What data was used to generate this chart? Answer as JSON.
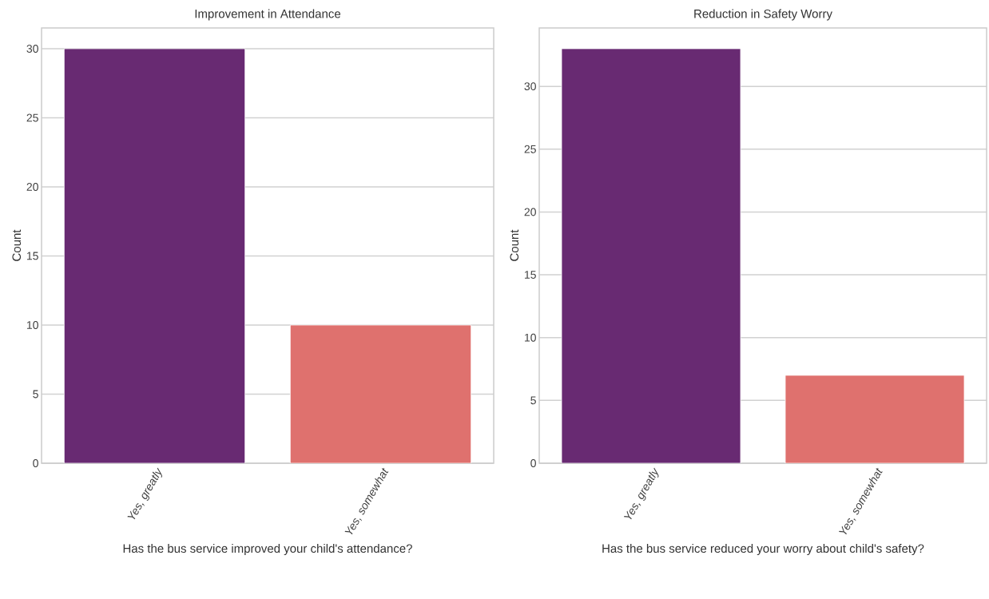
{
  "chart_data": [
    {
      "type": "bar",
      "title": "Improvement in Attendance",
      "xlabel": "Has the bus service improved your child's attendance?",
      "ylabel": "Count",
      "categories": [
        "Yes, greatly",
        "Yes, somewhat"
      ],
      "values": [
        30,
        10
      ],
      "colors": [
        "#682a72",
        "#df716e"
      ],
      "ylim": [
        0,
        31.5
      ],
      "yticks": [
        0,
        5,
        10,
        15,
        20,
        25,
        30
      ],
      "grid": "y"
    },
    {
      "type": "bar",
      "title": "Reduction in Safety Worry",
      "xlabel": "Has the bus service reduced your worry about child's safety?",
      "ylabel": "Count",
      "categories": [
        "Yes, greatly",
        "Yes, somewhat"
      ],
      "values": [
        33,
        7
      ],
      "colors": [
        "#682a72",
        "#df716e"
      ],
      "ylim": [
        0,
        34.65
      ],
      "yticks": [
        0,
        5,
        10,
        15,
        20,
        25,
        30
      ],
      "grid": "y"
    }
  ]
}
